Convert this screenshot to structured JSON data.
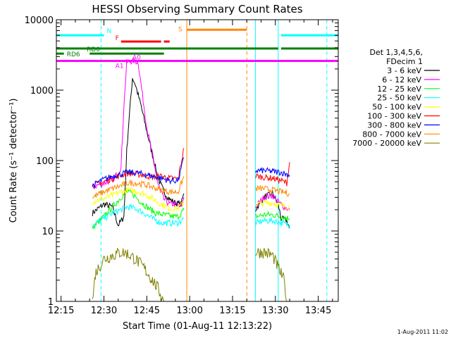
{
  "chart_data": {
    "type": "line",
    "title": "HESSI Observing Summary Count Rates",
    "xlabel": "Start Time (01-Aug-11 12:13:22)",
    "ylabel": "Count Rate (s⁻¹ detector⁻¹)",
    "yscale": "log",
    "xlim": [
      "12:13:22",
      "13:52:00"
    ],
    "ylim": [
      1,
      10000
    ],
    "x_ticks": [
      "12:15",
      "12:30",
      "12:45",
      "13:00",
      "13:15",
      "13:30",
      "13:45"
    ],
    "y_ticks": [
      "1",
      "10",
      "100",
      "1000",
      "10000"
    ],
    "footer_timestamp": "1-Aug-2011 11:02",
    "legend": {
      "placement": "right",
      "header": [
        "Det 1,3,4,5,6,",
        "FDecim 1"
      ]
    },
    "series": [
      {
        "name": "3 - 6 keV",
        "color": "#000000",
        "segments": [
          [
            [
              "12:26",
              18
            ],
            [
              "12:30",
              24
            ],
            [
              "12:33",
              22
            ],
            [
              "12:35",
              12
            ],
            [
              "12:37",
              16
            ],
            [
              "12:38",
              140
            ],
            [
              "12:39",
              500
            ],
            [
              "12:40",
              1500
            ],
            [
              "12:41",
              1200
            ],
            [
              "12:43",
              600
            ],
            [
              "12:45",
              260
            ],
            [
              "12:47",
              120
            ],
            [
              "12:49",
              55
            ],
            [
              "12:51",
              36
            ],
            [
              "12:53",
              28
            ],
            [
              "12:55",
              25
            ],
            [
              "12:57",
              24
            ],
            [
              "12:58",
              34
            ]
          ],
          [
            [
              "13:23",
              20
            ],
            [
              "13:26",
              30
            ],
            [
              "13:29",
              34
            ],
            [
              "13:31",
              24
            ],
            [
              "13:32",
              15
            ],
            [
              "13:34",
              14
            ],
            [
              "13:35",
              11
            ]
          ]
        ]
      },
      {
        "name": "6 - 12 keV",
        "color": "#ff00ff",
        "segments": [
          [
            [
              "12:26",
              42
            ],
            [
              "12:30",
              48
            ],
            [
              "12:33",
              52
            ],
            [
              "12:36",
              80
            ],
            [
              "12:37",
              600
            ],
            [
              "12:38",
              2500
            ],
            [
              "12:40",
              2600
            ],
            [
              "12:42",
              2500
            ],
            [
              "12:43",
              1200
            ],
            [
              "12:45",
              300
            ],
            [
              "12:47",
              120
            ],
            [
              "12:49",
              45
            ],
            [
              "12:51",
              28
            ],
            [
              "12:53",
              24
            ],
            [
              "12:55",
              24
            ],
            [
              "12:57",
              22
            ],
            [
              "12:58",
              30
            ]
          ],
          [
            [
              "13:23",
              22
            ],
            [
              "13:26",
              30
            ],
            [
              "13:29",
              32
            ],
            [
              "13:31",
              26
            ],
            [
              "13:33",
              22
            ],
            [
              "13:35",
              20
            ]
          ]
        ]
      },
      {
        "name": "12 - 25 keV",
        "color": "#00ff00",
        "segments": [
          [
            [
              "12:26",
              11
            ],
            [
              "12:30",
              16
            ],
            [
              "12:33",
              22
            ],
            [
              "12:36",
              30
            ],
            [
              "12:38",
              36
            ],
            [
              "12:40",
              34
            ],
            [
              "12:42",
              28
            ],
            [
              "12:45",
              22
            ],
            [
              "12:48",
              18
            ],
            [
              "12:51",
              17
            ],
            [
              "12:54",
              16
            ],
            [
              "12:56",
              16
            ],
            [
              "12:58",
              20
            ]
          ],
          [
            [
              "13:23",
              16
            ],
            [
              "13:26",
              17
            ],
            [
              "13:29",
              17
            ],
            [
              "13:32",
              16
            ],
            [
              "13:35",
              15
            ]
          ]
        ]
      },
      {
        "name": "25 - 50 keV",
        "color": "#00ffff",
        "segments": [
          [
            [
              "12:26",
              12
            ],
            [
              "12:30",
              15
            ],
            [
              "12:33",
              18
            ],
            [
              "12:36",
              20
            ],
            [
              "12:38",
              22
            ],
            [
              "12:41",
              21
            ],
            [
              "12:44",
              18
            ],
            [
              "12:47",
              15
            ],
            [
              "12:50",
              13
            ],
            [
              "12:53",
              13
            ],
            [
              "12:56",
              13
            ],
            [
              "12:58",
              15
            ]
          ],
          [
            [
              "13:23",
              13
            ],
            [
              "13:26",
              14
            ],
            [
              "13:29",
              14
            ],
            [
              "13:32",
              13
            ],
            [
              "13:35",
              12
            ]
          ]
        ]
      },
      {
        "name": "50 - 100 keV",
        "color": "#ffff00",
        "segments": [
          [
            [
              "12:26",
              26
            ],
            [
              "12:30",
              29
            ],
            [
              "12:33",
              32
            ],
            [
              "12:36",
              36
            ],
            [
              "12:38",
              38
            ],
            [
              "12:41",
              37
            ],
            [
              "12:44",
              34
            ],
            [
              "12:47",
              29
            ],
            [
              "12:50",
              24
            ],
            [
              "12:53",
              21
            ],
            [
              "12:56",
              21
            ],
            [
              "12:58",
              26
            ]
          ],
          [
            [
              "13:23",
              24
            ],
            [
              "13:26",
              25
            ],
            [
              "13:29",
              25
            ],
            [
              "13:32",
              23
            ],
            [
              "13:35",
              22
            ]
          ]
        ]
      },
      {
        "name": "100 - 300 keV",
        "color": "#ff0000",
        "segments": [
          [
            [
              "12:26",
              44
            ],
            [
              "12:30",
              50
            ],
            [
              "12:33",
              56
            ],
            [
              "12:36",
              62
            ],
            [
              "12:38",
              66
            ],
            [
              "12:41",
              65
            ],
            [
              "12:44",
              62
            ],
            [
              "12:47",
              58
            ],
            [
              "12:50",
              60
            ],
            [
              "12:53",
              56
            ],
            [
              "12:56",
              55
            ],
            [
              "12:58",
              150
            ]
          ],
          [
            [
              "13:23",
              60
            ],
            [
              "13:26",
              58
            ],
            [
              "13:29",
              56
            ],
            [
              "13:32",
              52
            ],
            [
              "13:34",
              48
            ],
            [
              "13:35",
              95
            ]
          ]
        ]
      },
      {
        "name": "300 - 800 keV",
        "color": "#0000ff",
        "segments": [
          [
            [
              "12:26",
              44
            ],
            [
              "12:30",
              54
            ],
            [
              "12:33",
              60
            ],
            [
              "12:36",
              64
            ],
            [
              "12:38",
              68
            ],
            [
              "12:41",
              67
            ],
            [
              "12:44",
              64
            ],
            [
              "12:47",
              60
            ],
            [
              "12:50",
              56
            ],
            [
              "12:53",
              52
            ],
            [
              "12:56",
              52
            ],
            [
              "12:58",
              110
            ]
          ],
          [
            [
              "13:23",
              72
            ],
            [
              "13:26",
              72
            ],
            [
              "13:29",
              70
            ],
            [
              "13:32",
              68
            ],
            [
              "13:35",
              62
            ]
          ]
        ]
      },
      {
        "name": "800 - 7000 keV",
        "color": "#ff8800",
        "segments": [
          [
            [
              "12:26",
              30
            ],
            [
              "12:30",
              36
            ],
            [
              "12:33",
              40
            ],
            [
              "12:36",
              44
            ],
            [
              "12:38",
              48
            ],
            [
              "12:41",
              48
            ],
            [
              "12:44",
              46
            ],
            [
              "12:47",
              42
            ],
            [
              "12:50",
              38
            ],
            [
              "12:53",
              36
            ],
            [
              "12:56",
              36
            ],
            [
              "12:58",
              60
            ]
          ],
          [
            [
              "13:23",
              40
            ],
            [
              "13:26",
              40
            ],
            [
              "13:29",
              38
            ],
            [
              "13:32",
              36
            ],
            [
              "13:35",
              34
            ]
          ]
        ]
      },
      {
        "name": "7000 - 20000 keV",
        "color": "#808000",
        "segments": [
          [
            [
              "12:26",
              1
            ],
            [
              "12:27",
              2.5
            ],
            [
              "12:30",
              4
            ],
            [
              "12:33",
              4.5
            ],
            [
              "12:36",
              5
            ],
            [
              "12:38",
              4.8
            ],
            [
              "12:41",
              4
            ],
            [
              "12:44",
              3
            ],
            [
              "12:47",
              2
            ],
            [
              "12:49",
              1.5
            ],
            [
              "12:51",
              1
            ]
          ],
          [
            [
              "13:23",
              5
            ],
            [
              "13:26",
              5
            ],
            [
              "13:29",
              4.5
            ],
            [
              "13:31",
              3
            ],
            [
              "13:33",
              2
            ],
            [
              "13:34",
              1
            ]
          ]
        ]
      }
    ],
    "flag_bars": [
      {
        "label": "N",
        "color": "#00ffff",
        "y": 6000,
        "spans": [
          [
            "12:13:22",
            "12:30"
          ],
          [
            "13:32",
            "13:52"
          ]
        ]
      },
      {
        "label": "F",
        "color": "#ff0000",
        "y": 4900,
        "spans": [
          [
            "12:36",
            "12:50"
          ],
          [
            "12:51",
            "12:53"
          ]
        ]
      },
      {
        "label": "S",
        "color": "#ff8800",
        "y": 7200,
        "spans": [
          [
            "12:59",
            "13:20"
          ]
        ]
      },
      {
        "label": "RD0",
        "color": "#008000",
        "y": 3900,
        "spans": [
          [
            "12:13:22",
            "12:52"
          ],
          [
            "12:52",
            "13:20"
          ],
          [
            "13:20",
            "13:31"
          ],
          [
            "13:32",
            "13:52"
          ]
        ]
      },
      {
        "label": "RD6",
        "color": "#008000",
        "y": 3300,
        "spans": [
          [
            "12:13:22",
            "12:16"
          ],
          [
            "12:25",
            "12:51"
          ]
        ]
      },
      {
        "label": "A1",
        "color": "#ff00ff",
        "y": 2600,
        "spans": [
          [
            "12:13:22",
            "13:52"
          ]
        ]
      },
      {
        "label": "A0",
        "color": "#ff00ff",
        "y": 2600,
        "spans": [
          [
            "12:39",
            "12:43"
          ]
        ]
      }
    ],
    "vertical_markers": [
      {
        "x": "12:13:22",
        "color": "#00ffff",
        "style": "solid"
      },
      {
        "x": "12:29",
        "color": "#00ffff",
        "style": "dashed"
      },
      {
        "x": "12:59",
        "color": "#ff8800",
        "style": "solid"
      },
      {
        "x": "13:20",
        "color": "#ff8800",
        "style": "dashed"
      },
      {
        "x": "13:23",
        "color": "#00ffff",
        "style": "solid"
      },
      {
        "x": "13:31",
        "color": "#00ffff",
        "style": "solid"
      },
      {
        "x": "13:48",
        "color": "#00ffff",
        "style": "dashed"
      }
    ]
  }
}
